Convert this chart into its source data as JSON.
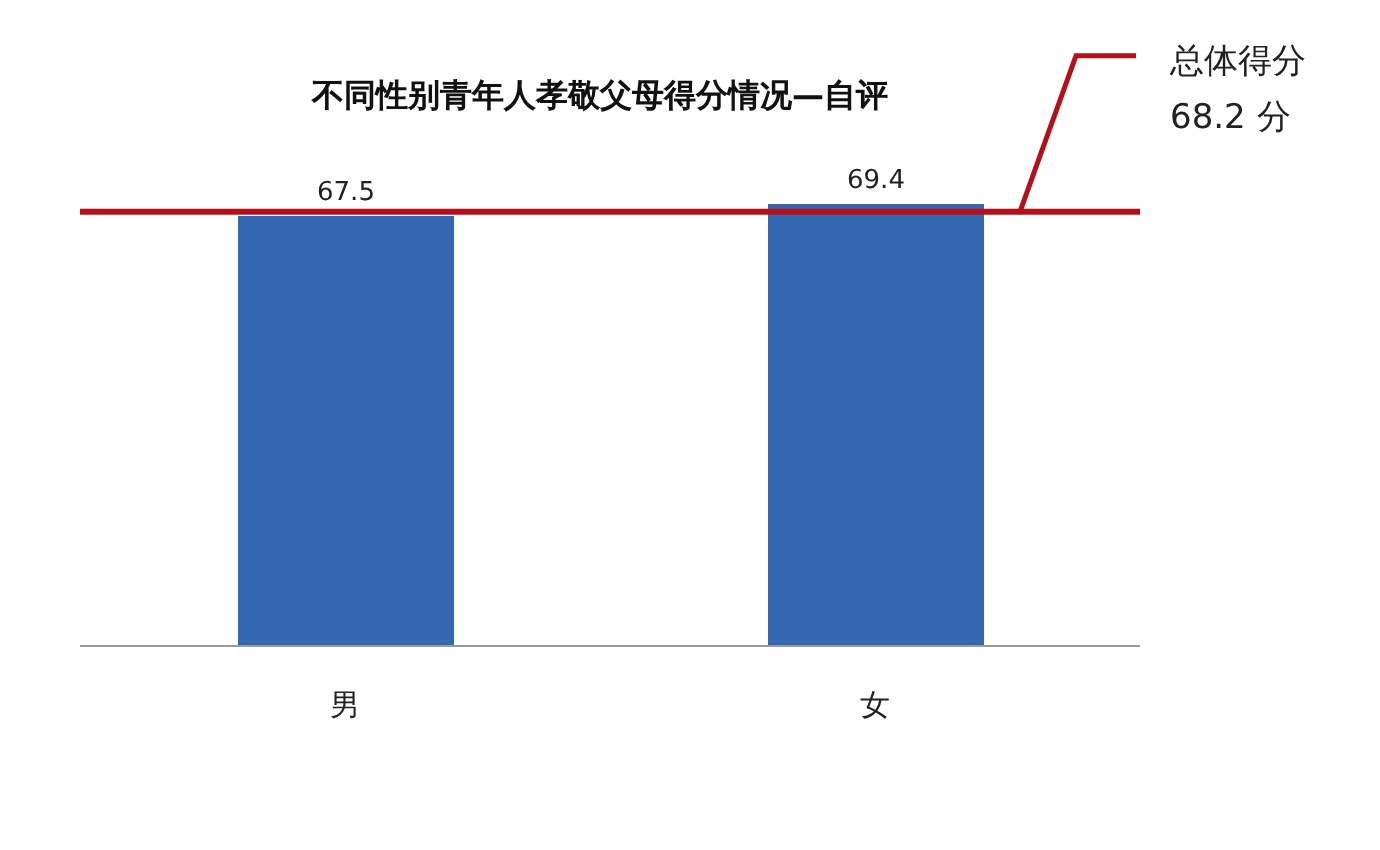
{
  "chart_data": {
    "type": "bar",
    "title": "不同性别青年人孝敬父母得分情况—自评",
    "categories": [
      "男",
      "女"
    ],
    "values": [
      67.5,
      69.4
    ],
    "color": "#3468b0",
    "tick_labels": "x",
    "data_labels": true,
    "grid": false,
    "legend": false,
    "ref_lines": [
      {
        "axis": "y",
        "value": 68.2,
        "label": "总体得分\n68.2 分",
        "color": "#b5101a"
      }
    ]
  }
}
